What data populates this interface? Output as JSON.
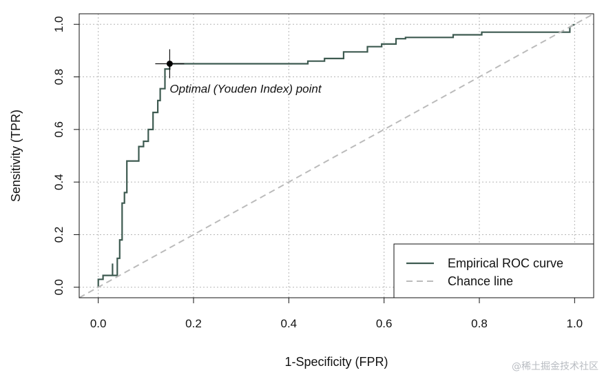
{
  "chart_data": {
    "type": "line",
    "title": "",
    "xlabel": "1-Specificity (FPR)",
    "ylabel": "Sensitivity (TPR)",
    "xlim": [
      -0.04,
      1.04
    ],
    "ylim": [
      -0.04,
      1.04
    ],
    "xticks": [
      "0.0",
      "0.2",
      "0.4",
      "0.6",
      "0.8",
      "1.0"
    ],
    "yticks": [
      "0.0",
      "0.2",
      "0.4",
      "0.6",
      "0.8",
      "1.0"
    ],
    "grid": true,
    "legend_position": "bottom-right",
    "series": [
      {
        "name": "Empirical ROC curve",
        "style": "solid",
        "color": "#3d5a50",
        "x": [
          0.0,
          0.0,
          0.01,
          0.01,
          0.03,
          0.03,
          0.03,
          0.03,
          0.03,
          0.04,
          0.04,
          0.045,
          0.045,
          0.05,
          0.05,
          0.055,
          0.055,
          0.06,
          0.06,
          0.065,
          0.065,
          0.085,
          0.085,
          0.095,
          0.095,
          0.105,
          0.105,
          0.115,
          0.115,
          0.125,
          0.125,
          0.13,
          0.13,
          0.14,
          0.14,
          0.15,
          0.15,
          0.44,
          0.44,
          0.475,
          0.475,
          0.515,
          0.515,
          0.565,
          0.565,
          0.595,
          0.595,
          0.625,
          0.625,
          0.645,
          0.645,
          0.745,
          0.745,
          0.805,
          0.805,
          0.99,
          0.99,
          1.0
        ],
        "y": [
          0.0,
          0.03,
          0.03,
          0.045,
          0.045,
          0.06,
          0.09,
          0.09,
          0.045,
          0.045,
          0.11,
          0.11,
          0.18,
          0.18,
          0.32,
          0.32,
          0.36,
          0.36,
          0.48,
          0.48,
          0.48,
          0.48,
          0.535,
          0.535,
          0.555,
          0.555,
          0.6,
          0.6,
          0.665,
          0.665,
          0.71,
          0.71,
          0.755,
          0.755,
          0.83,
          0.83,
          0.85,
          0.85,
          0.86,
          0.86,
          0.87,
          0.87,
          0.895,
          0.895,
          0.915,
          0.915,
          0.925,
          0.925,
          0.945,
          0.945,
          0.95,
          0.95,
          0.96,
          0.96,
          0.97,
          0.97,
          0.99,
          1.0
        ]
      },
      {
        "name": "Chance line",
        "style": "dashed",
        "color": "#bbbbbb",
        "x": [
          -0.04,
          1.04
        ],
        "y": [
          -0.04,
          1.04
        ]
      }
    ],
    "annotations": [
      {
        "text": "Optimal (Youden Index) point",
        "x": 0.15,
        "y": 0.85
      }
    ]
  },
  "watermark": "@稀土掘金技术社区"
}
